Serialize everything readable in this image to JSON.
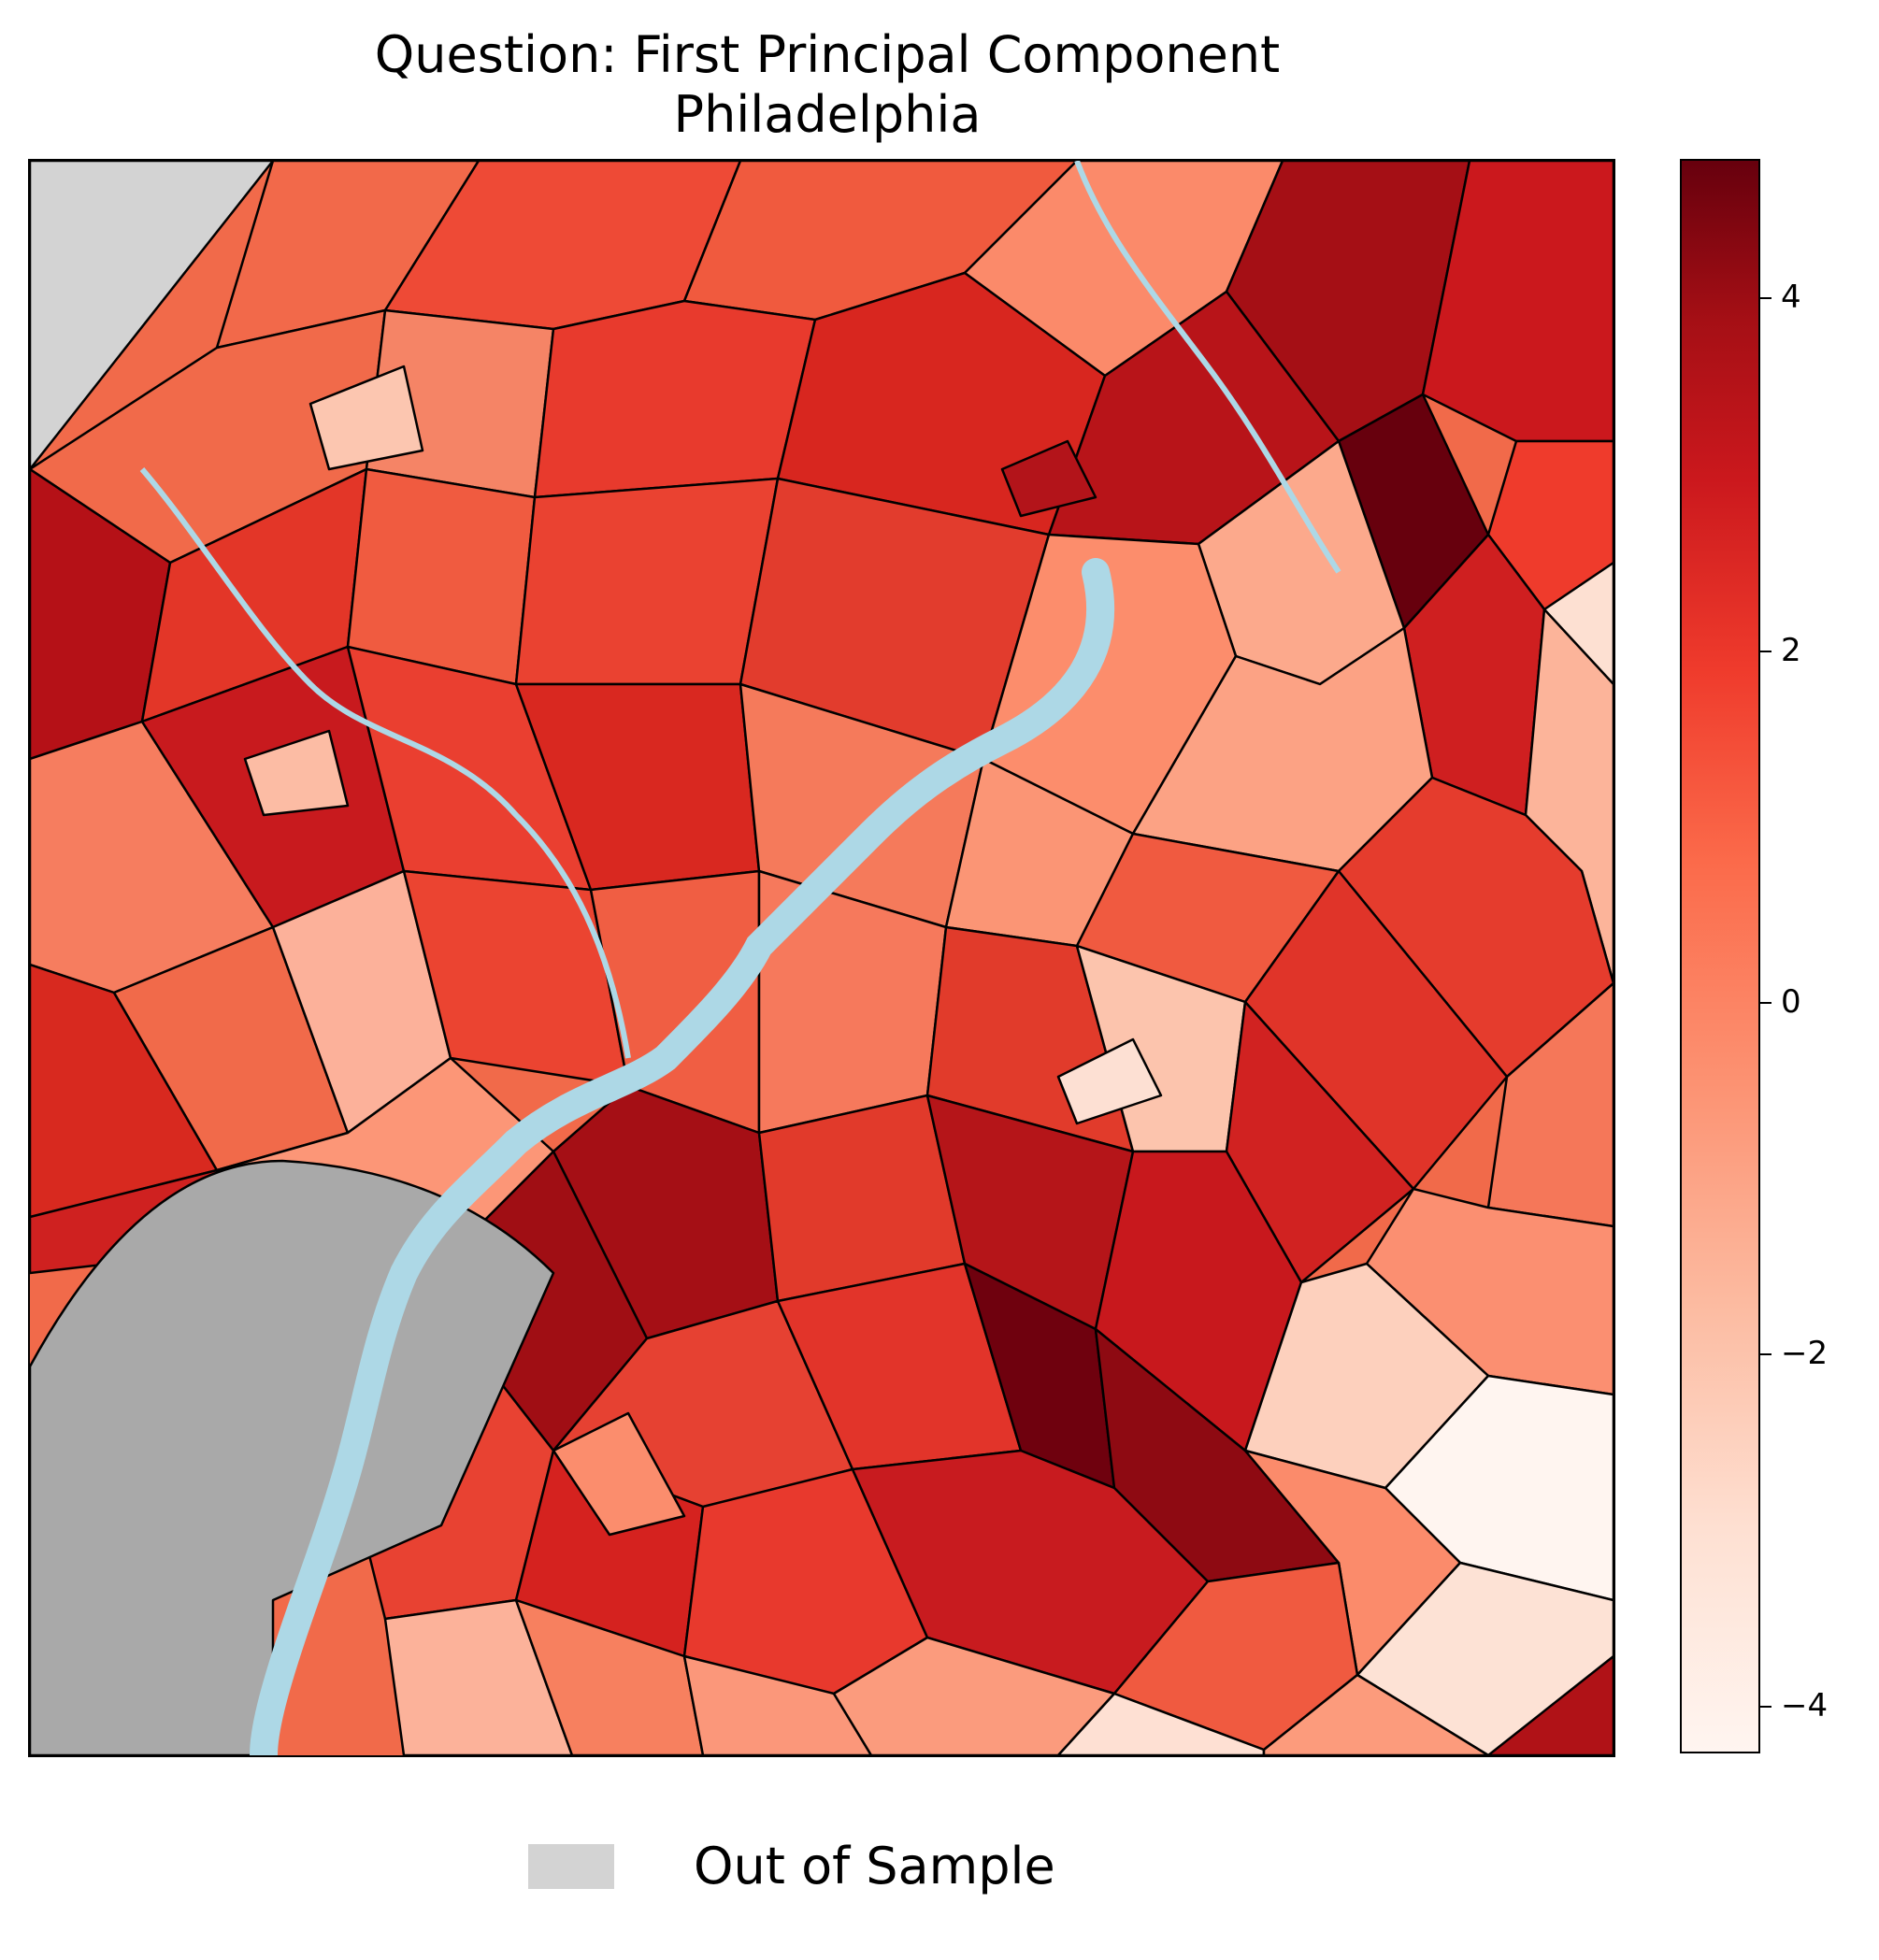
{
  "title": {
    "line1": "Question: First Principal Component",
    "line2": "Philadelphia"
  },
  "colorbar": {
    "tick_labels": [
      "4",
      "2",
      "0",
      "−2",
      "−4"
    ],
    "tick_values": [
      4,
      2,
      0,
      -2,
      -4
    ],
    "range": [
      -4.2,
      4.8
    ],
    "colormap": "Reds"
  },
  "legend": {
    "label": "Out of Sample",
    "swatch_color": "#d3d3d3"
  },
  "colors": {
    "water": "#add8e6",
    "out_of_sample": "#d3d3d3",
    "background_region": "#a9a9a9",
    "border": "#000000"
  }
}
